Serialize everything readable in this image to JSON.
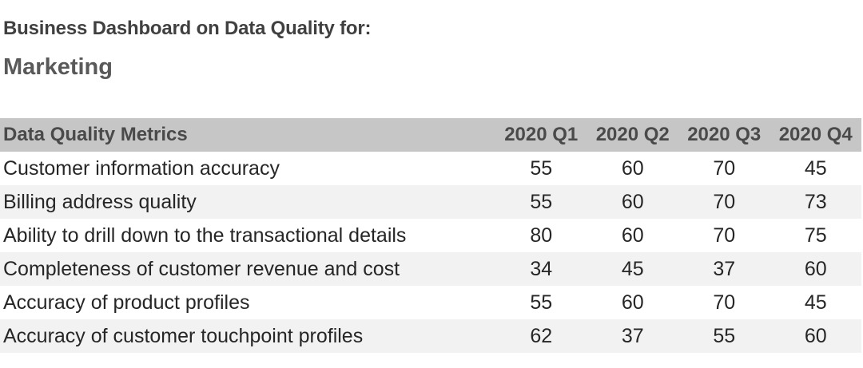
{
  "header": {
    "title": "Business Dashboard on Data Quality for:",
    "subtitle": "Marketing"
  },
  "table": {
    "columns": [
      "Data Quality Metrics",
      "2020 Q1",
      "2020 Q2",
      "2020 Q3",
      "2020 Q4"
    ],
    "rows": [
      [
        "Customer information accuracy",
        "55",
        "60",
        "70",
        "45"
      ],
      [
        "Billing address quality",
        "55",
        "60",
        "70",
        "73"
      ],
      [
        "Ability to drill down to the transactional details",
        "80",
        "60",
        "70",
        "75"
      ],
      [
        "Completeness of customer revenue and cost",
        "34",
        "45",
        "37",
        "60"
      ],
      [
        "Accuracy of product profiles",
        "55",
        "60",
        "70",
        "45"
      ],
      [
        "Accuracy of customer touchpoint profiles",
        "62",
        "37",
        "55",
        "60"
      ]
    ]
  },
  "colors": {
    "header_bg": "#c6c6c6",
    "stripe_bg": "#f2f2f2"
  }
}
